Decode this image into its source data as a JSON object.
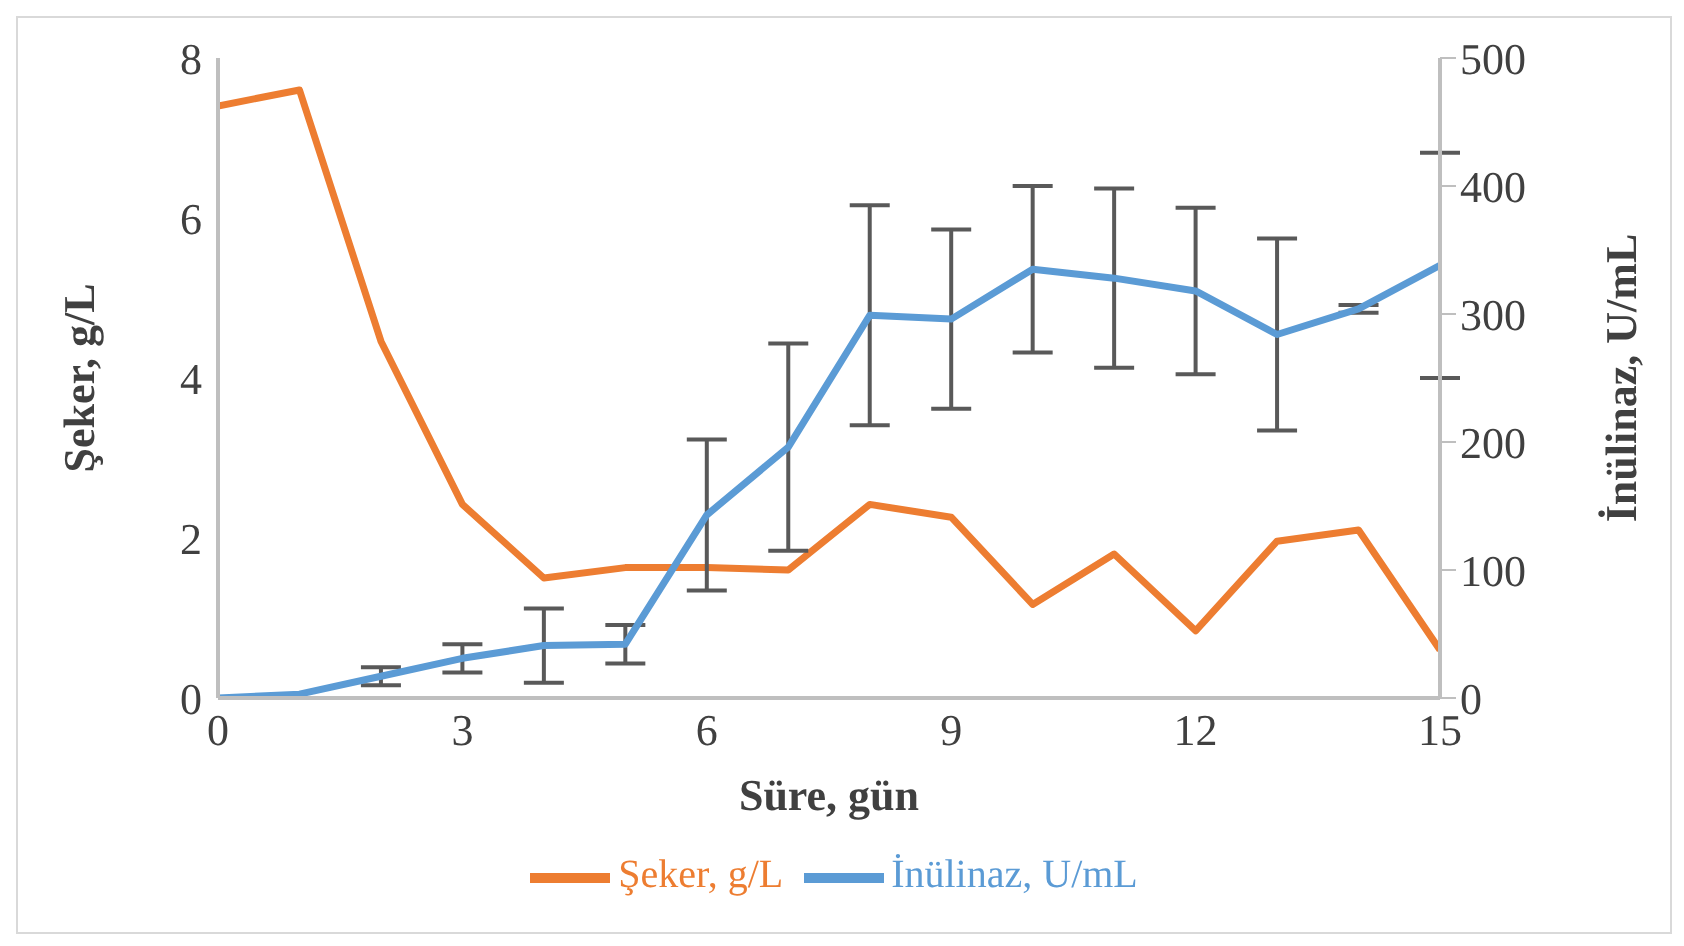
{
  "chart_data": {
    "type": "line",
    "xlabel": "Süre, gün",
    "ylabel": "Şeker, g/L",
    "y2label": "İnülinaz, U/mL",
    "x": [
      0,
      1,
      2,
      3,
      4,
      5,
      6,
      7,
      8,
      9,
      10,
      11,
      12,
      13,
      14,
      15
    ],
    "xlim": [
      0,
      15
    ],
    "xticks": [
      0,
      3,
      6,
      9,
      12,
      15
    ],
    "ylim": [
      0,
      8
    ],
    "yticks": [
      0,
      2,
      4,
      6,
      8
    ],
    "y2lim": [
      0,
      500
    ],
    "y2ticks": [
      0,
      100,
      200,
      300,
      400,
      500
    ],
    "grid": false,
    "legend": "bottom",
    "marker": "none",
    "series": [
      {
        "name": "Şeker, g/L",
        "color": "#ed7d31",
        "values": [
          7.4,
          7.6,
          4.46,
          2.42,
          1.5,
          1.63,
          1.63,
          1.6,
          2.42,
          2.26,
          1.17,
          1.8,
          0.84,
          1.96,
          2.1,
          0.6
        ]
      },
      {
        "name": "İnülinaz, U/mL",
        "color": "#5b9bd5",
        "axis": "y2",
        "values": [
          0,
          3,
          17,
          31,
          41,
          42,
          143,
          196,
          299,
          296,
          335,
          328,
          318,
          284,
          304,
          338
        ],
        "errors": [
          null,
          null,
          7,
          11,
          29,
          15,
          59,
          81,
          86,
          70,
          65,
          70,
          65,
          75,
          3,
          88
        ]
      }
    ]
  }
}
